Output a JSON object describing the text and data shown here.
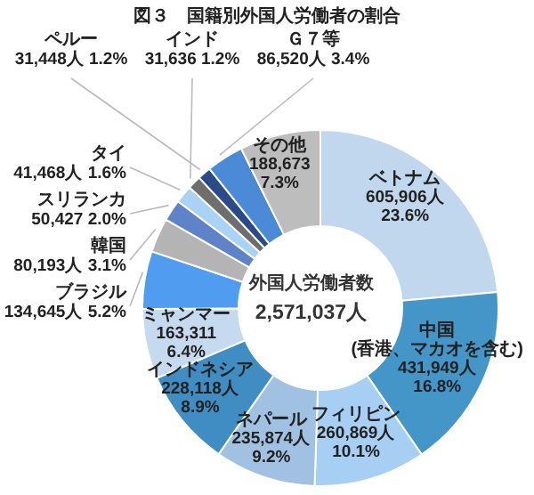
{
  "chart_data": {
    "type": "donut",
    "title": "図３　国籍別外国人労働者の割合",
    "categories": [
      "ベトナム",
      "中国\n(香港、マカオを含む)",
      "フィリピン",
      "ネパール",
      "インドネシア",
      "ミャンマー",
      "ブラジル",
      "韓国",
      "スリランカ",
      "タイ",
      "インド",
      "ペルー",
      "Ｇ７等",
      "その他"
    ],
    "values": [
      605906,
      431949,
      260869,
      235874,
      228118,
      163311,
      134645,
      80193,
      50427,
      41468,
      31636,
      31448,
      86520,
      188673
    ],
    "value_labels": [
      "605,906人\n23.6%",
      "431,949人\n16.8%",
      "260,869人\n10.1%",
      "235,874人\n9.2%",
      "228,118人\n8.9%",
      "163,311\n6.4%",
      "134,645人\n5.2%",
      "80,193人\n3.1%",
      "50,427\n2.0%",
      "41,468人\n1.6%",
      "31,636\n1.2%",
      "31,448人\n1.2%",
      "86,520人\n3.4%",
      "188,673\n7.3%"
    ],
    "colors": [
      "#c0d7ed",
      "#4596c8",
      "#a7cff3",
      "#a0c1e2",
      "#3f8dc2",
      "#c6daef",
      "#4f9cf0",
      "#b4b4b4",
      "#5e83c8",
      "#aad2f5",
      "#6e6e6e",
      "#2b4a8a",
      "#4a8ad6",
      "#bdbdbd"
    ],
    "annotations": [
      "外国人労働者数",
      "2,571,037人"
    ]
  }
}
